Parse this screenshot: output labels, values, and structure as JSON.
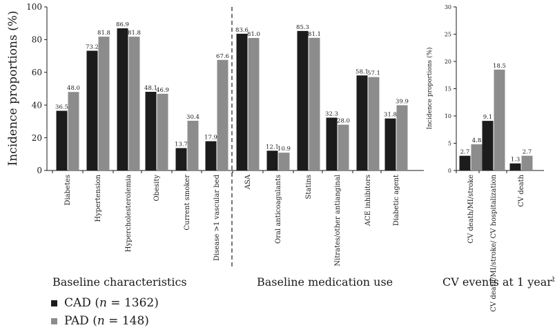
{
  "colors": {
    "cad": "#1c1c1c",
    "pad": "#8c8c8c",
    "axis": "#1a1a1a",
    "divider": "#1a1a1a"
  },
  "legend": {
    "cad_label": "CAD (n = 1362)",
    "pad_label": "PAD (n = 148)"
  },
  "chart_data": [
    {
      "type": "bar",
      "title": "",
      "section_label": "Baseline characteristics",
      "ylabel": "Incidence proportions (%)",
      "ylim": [
        0,
        100
      ],
      "yticks": [
        0,
        20,
        40,
        60,
        80,
        100
      ],
      "categories": [
        "Diabetes",
        "Hypertension",
        "Hypercholesterolemia",
        "Obesity",
        "Current smoker",
        "Disease >1 vascular bed"
      ],
      "series": [
        {
          "name": "CAD (n = 1362)",
          "values": [
            36.5,
            73.2,
            86.9,
            48.1,
            13.7,
            17.9
          ]
        },
        {
          "name": "PAD (n = 148)",
          "values": [
            48.0,
            81.8,
            81.8,
            46.9,
            30.4,
            67.6
          ]
        }
      ],
      "data_labels": [
        [
          "36.5",
          "73.2",
          "86.9",
          "48.1",
          "13.7",
          "17.9"
        ],
        [
          "48.0",
          "81.8",
          "81.8",
          "46.9",
          "30.4",
          "67.6"
        ]
      ]
    },
    {
      "type": "bar",
      "title": "",
      "section_label": "Baseline medication use",
      "ylim": [
        0,
        100
      ],
      "categories": [
        "ASA",
        "Oral anticoagulants",
        "Statins",
        "Nitrates/other antianginal",
        "ACE inhibitors",
        "Diabetic agent"
      ],
      "series": [
        {
          "name": "CAD (n = 1362)",
          "values": [
            83.6,
            12.1,
            85.3,
            32.3,
            58.1,
            31.8
          ]
        },
        {
          "name": "PAD (n = 148)",
          "values": [
            81.0,
            10.9,
            81.1,
            28.0,
            57.1,
            39.9
          ]
        }
      ],
      "data_labels": [
        [
          "83.6",
          "12.1",
          "85.3",
          "32.3",
          "58.1",
          "31.8"
        ],
        [
          "81.0",
          "10.9",
          "81.1",
          "28.0",
          "57.1",
          "39.9"
        ]
      ]
    },
    {
      "type": "bar",
      "title": "",
      "section_label": "CV events at 1 year",
      "section_label_sup": "b",
      "ylabel": "Incidence proportions (%)",
      "ylim": [
        0,
        30
      ],
      "yticks": [
        0,
        5,
        10,
        15,
        20,
        25,
        30
      ],
      "categories": [
        "CV death/MI/stroke",
        "CV death/MI/stroke/ CV hospitalization",
        "CV death"
      ],
      "series": [
        {
          "name": "CAD (n = 1362)",
          "values": [
            2.7,
            9.1,
            1.3
          ]
        },
        {
          "name": "PAD (n = 148)",
          "values": [
            4.8,
            18.5,
            2.7
          ]
        }
      ],
      "data_labels": [
        [
          "2.7",
          "9.1",
          "1.3"
        ],
        [
          "4.8",
          "18.5",
          "2.7"
        ]
      ]
    }
  ]
}
